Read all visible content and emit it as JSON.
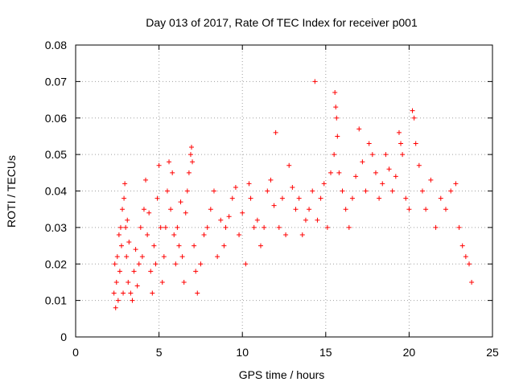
{
  "chart_data": {
    "type": "scatter",
    "title": "Day 013 of 2017, Rate Of TEC Index for receiver p001",
    "xlabel": "GPS time / hours",
    "ylabel": "ROTI / TECUs",
    "xlim": [
      0,
      25
    ],
    "ylim": [
      0,
      0.08
    ],
    "xticks": [
      0,
      5,
      10,
      15,
      20,
      25
    ],
    "yticks": [
      0,
      0.01,
      0.02,
      0.03,
      0.04,
      0.05,
      0.06,
      0.07,
      0.08
    ],
    "xtick_labels": [
      "0",
      "5",
      "10",
      "15",
      "20",
      "25"
    ],
    "ytick_labels": [
      "0",
      "0.01",
      "0.02",
      "0.03",
      "0.04",
      "0.05",
      "0.06",
      "0.07",
      "0.08"
    ],
    "grid": true,
    "marker": "+",
    "color": "#ff0000",
    "series": [
      {
        "points": [
          [
            2.3,
            0.012
          ],
          [
            2.35,
            0.02
          ],
          [
            2.4,
            0.008
          ],
          [
            2.45,
            0.015
          ],
          [
            2.5,
            0.022
          ],
          [
            2.55,
            0.01
          ],
          [
            2.6,
            0.028
          ],
          [
            2.65,
            0.018
          ],
          [
            2.7,
            0.03
          ],
          [
            2.75,
            0.025
          ],
          [
            2.8,
            0.035
          ],
          [
            2.85,
            0.012
          ],
          [
            2.9,
            0.038
          ],
          [
            2.95,
            0.042
          ],
          [
            3.0,
            0.03
          ],
          [
            3.05,
            0.022
          ],
          [
            3.1,
            0.032
          ],
          [
            3.15,
            0.015
          ],
          [
            3.2,
            0.026
          ],
          [
            3.3,
            0.012
          ],
          [
            3.4,
            0.01
          ],
          [
            3.5,
            0.018
          ],
          [
            3.6,
            0.024
          ],
          [
            3.7,
            0.014
          ],
          [
            3.8,
            0.02
          ],
          [
            3.9,
            0.03
          ],
          [
            4.0,
            0.022
          ],
          [
            4.1,
            0.035
          ],
          [
            4.2,
            0.043
          ],
          [
            4.3,
            0.028
          ],
          [
            4.4,
            0.034
          ],
          [
            4.5,
            0.018
          ],
          [
            4.6,
            0.012
          ],
          [
            4.7,
            0.025
          ],
          [
            4.8,
            0.02
          ],
          [
            4.9,
            0.038
          ],
          [
            5.0,
            0.047
          ],
          [
            5.1,
            0.03
          ],
          [
            5.2,
            0.015
          ],
          [
            5.3,
            0.022
          ],
          [
            5.4,
            0.03
          ],
          [
            5.5,
            0.04
          ],
          [
            5.6,
            0.048
          ],
          [
            5.7,
            0.035
          ],
          [
            5.8,
            0.045
          ],
          [
            5.9,
            0.028
          ],
          [
            6.0,
            0.02
          ],
          [
            6.1,
            0.03
          ],
          [
            6.2,
            0.025
          ],
          [
            6.3,
            0.037
          ],
          [
            6.4,
            0.022
          ],
          [
            6.5,
            0.015
          ],
          [
            6.6,
            0.034
          ],
          [
            6.7,
            0.04
          ],
          [
            6.8,
            0.045
          ],
          [
            6.9,
            0.05
          ],
          [
            6.95,
            0.052
          ],
          [
            7.0,
            0.048
          ],
          [
            7.1,
            0.025
          ],
          [
            7.2,
            0.018
          ],
          [
            7.3,
            0.012
          ],
          [
            7.5,
            0.02
          ],
          [
            7.7,
            0.028
          ],
          [
            7.9,
            0.03
          ],
          [
            8.1,
            0.035
          ],
          [
            8.3,
            0.04
          ],
          [
            8.5,
            0.022
          ],
          [
            8.7,
            0.032
          ],
          [
            8.9,
            0.025
          ],
          [
            9.0,
            0.03
          ],
          [
            9.2,
            0.033
          ],
          [
            9.4,
            0.038
          ],
          [
            9.6,
            0.041
          ],
          [
            9.8,
            0.028
          ],
          [
            10.0,
            0.034
          ],
          [
            10.2,
            0.02
          ],
          [
            10.4,
            0.042
          ],
          [
            10.5,
            0.038
          ],
          [
            10.7,
            0.03
          ],
          [
            10.9,
            0.032
          ],
          [
            11.1,
            0.025
          ],
          [
            11.3,
            0.03
          ],
          [
            11.5,
            0.04
          ],
          [
            11.7,
            0.043
          ],
          [
            11.9,
            0.036
          ],
          [
            12.0,
            0.056
          ],
          [
            12.2,
            0.03
          ],
          [
            12.4,
            0.038
          ],
          [
            12.6,
            0.028
          ],
          [
            12.8,
            0.047
          ],
          [
            13.0,
            0.041
          ],
          [
            13.2,
            0.035
          ],
          [
            13.4,
            0.038
          ],
          [
            13.6,
            0.028
          ],
          [
            13.8,
            0.032
          ],
          [
            14.0,
            0.035
          ],
          [
            14.2,
            0.04
          ],
          [
            14.35,
            0.07
          ],
          [
            14.5,
            0.032
          ],
          [
            14.7,
            0.038
          ],
          [
            14.9,
            0.042
          ],
          [
            15.1,
            0.03
          ],
          [
            15.3,
            0.045
          ],
          [
            15.5,
            0.05
          ],
          [
            15.55,
            0.067
          ],
          [
            15.6,
            0.063
          ],
          [
            15.65,
            0.06
          ],
          [
            15.7,
            0.055
          ],
          [
            15.8,
            0.045
          ],
          [
            16.0,
            0.04
          ],
          [
            16.2,
            0.035
          ],
          [
            16.4,
            0.03
          ],
          [
            16.6,
            0.038
          ],
          [
            16.8,
            0.044
          ],
          [
            17.0,
            0.057
          ],
          [
            17.2,
            0.048
          ],
          [
            17.4,
            0.04
          ],
          [
            17.6,
            0.053
          ],
          [
            17.8,
            0.05
          ],
          [
            18.0,
            0.045
          ],
          [
            18.2,
            0.038
          ],
          [
            18.4,
            0.042
          ],
          [
            18.6,
            0.05
          ],
          [
            18.8,
            0.046
          ],
          [
            19.0,
            0.04
          ],
          [
            19.2,
            0.044
          ],
          [
            19.4,
            0.056
          ],
          [
            19.5,
            0.053
          ],
          [
            19.6,
            0.05
          ],
          [
            19.8,
            0.038
          ],
          [
            20.0,
            0.035
          ],
          [
            20.2,
            0.062
          ],
          [
            20.3,
            0.06
          ],
          [
            20.4,
            0.053
          ],
          [
            20.6,
            0.047
          ],
          [
            20.8,
            0.04
          ],
          [
            21.0,
            0.035
          ],
          [
            21.3,
            0.043
          ],
          [
            21.6,
            0.03
          ],
          [
            21.9,
            0.038
          ],
          [
            22.2,
            0.035
          ],
          [
            22.5,
            0.04
          ],
          [
            22.8,
            0.042
          ],
          [
            23.0,
            0.03
          ],
          [
            23.2,
            0.025
          ],
          [
            23.4,
            0.022
          ],
          [
            23.6,
            0.02
          ],
          [
            23.75,
            0.015
          ]
        ]
      }
    ]
  }
}
